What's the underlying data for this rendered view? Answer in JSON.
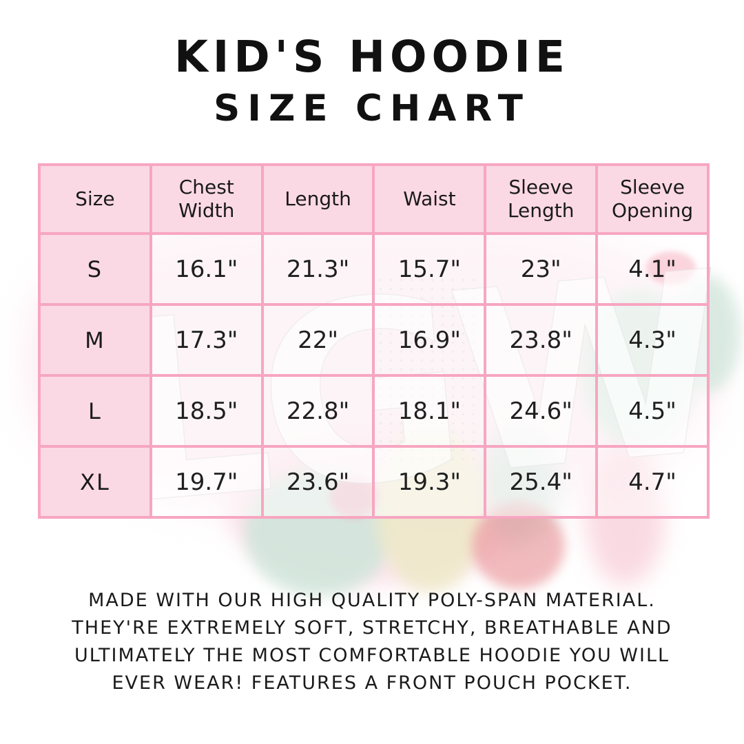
{
  "header": {
    "title": "KID'S HOODIE",
    "subtitle": "SIZE CHART"
  },
  "table": {
    "columns": [
      "Size",
      "Chest\nWidth",
      "Length",
      "Waist",
      "Sleeve\nLength",
      "Sleeve\nOpening"
    ],
    "rows": [
      {
        "size": "S",
        "values": [
          "16.1\"",
          "21.3\"",
          "15.7\"",
          "23\"",
          "4.1\""
        ]
      },
      {
        "size": "M",
        "values": [
          "17.3\"",
          "22\"",
          "16.9\"",
          "23.8\"",
          "4.3\""
        ]
      },
      {
        "size": "L",
        "values": [
          "18.5\"",
          "22.8\"",
          "18.1\"",
          "24.6\"",
          "4.5\""
        ]
      },
      {
        "size": "XL",
        "values": [
          "19.7\"",
          "23.6\"",
          "19.3\"",
          "25.4\"",
          "4.7\""
        ]
      }
    ]
  },
  "footer": {
    "lines": [
      "MADE WITH OUR HIGH QUALITY POLY-SPAN MATERIAL.",
      "THEY'RE EXTREMELY SOFT, STRETCHY, BREATHABLE AND",
      "ULTIMATELY THE MOST COMFORTABLE HOODIE YOU WILL",
      "EVER WEAR! FEATURES A FRONT POUCH POCKET."
    ]
  },
  "watermark": {
    "text": "LGW"
  },
  "colors": {
    "table-border": "#f7a6c2",
    "header-fill": "#fbd9e4",
    "title-text": "#111111",
    "body-text": "#1a1a1a"
  }
}
